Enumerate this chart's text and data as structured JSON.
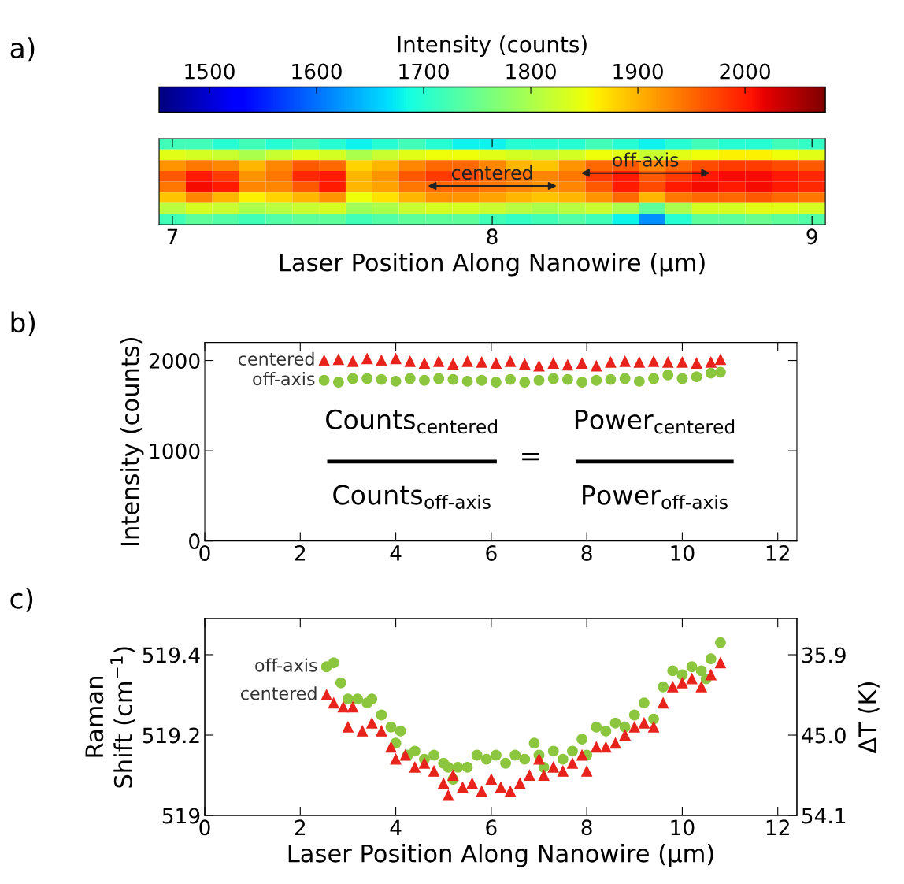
{
  "chart_data": [
    {
      "type": "heatmap",
      "clabel": "Intensity (counts)",
      "xlabel": "Laser Position Along Nanowire (µm)",
      "categories": [
        "7",
        null,
        null,
        null,
        null,
        null,
        null,
        null,
        null,
        null,
        null,
        null,
        "8",
        null,
        null,
        null,
        null,
        null,
        null,
        null,
        null,
        null,
        null,
        null,
        "9"
      ],
      "y_categories": [
        null,
        null,
        null,
        null,
        null,
        null,
        null,
        null
      ],
      "cells": [
        [
          1720,
          1720,
          1700,
          1720,
          1700,
          1720,
          1700,
          1680,
          1700,
          1720,
          1700,
          1680,
          1680,
          1700,
          1700,
          1700,
          1720,
          1700,
          1680,
          1700,
          1720,
          1700,
          1700,
          1720,
          1710
        ],
        [
          1840,
          1830,
          1820,
          1800,
          1820,
          1840,
          1830,
          1800,
          1820,
          1840,
          1850,
          1850,
          1840,
          1830,
          1820,
          1830,
          1850,
          1840,
          1820,
          1840,
          1850,
          1860,
          1860,
          1850,
          1840
        ],
        [
          1920,
          1940,
          1930,
          1900,
          1930,
          1960,
          1950,
          1880,
          1900,
          1930,
          1950,
          1950,
          1930,
          1900,
          1890,
          1920,
          1950,
          1960,
          1930,
          1950,
          1970,
          1980,
          1980,
          1970,
          1960
        ],
        [
          1960,
          2000,
          1980,
          1920,
          1940,
          1990,
          2000,
          1900,
          1920,
          1960,
          1980,
          1970,
          1950,
          1940,
          1930,
          1940,
          1980,
          2000,
          1960,
          1980,
          2000,
          2010,
          2010,
          2000,
          1990
        ],
        [
          1940,
          2010,
          2000,
          1930,
          1930,
          1960,
          2000,
          1900,
          1910,
          1940,
          1950,
          1950,
          1940,
          1930,
          1920,
          1930,
          1960,
          2000,
          1970,
          2000,
          2010,
          2000,
          2010,
          2000,
          1990
        ],
        [
          1890,
          1930,
          1900,
          1860,
          1880,
          1900,
          1920,
          1850,
          1870,
          1900,
          1920,
          1920,
          1910,
          1900,
          1890,
          1900,
          1920,
          1950,
          1900,
          1940,
          1950,
          1950,
          1960,
          1950,
          1940
        ],
        [
          1810,
          1830,
          1820,
          1800,
          1810,
          1820,
          1830,
          1790,
          1800,
          1820,
          1830,
          1830,
          1820,
          1810,
          1800,
          1810,
          1820,
          1800,
          1740,
          1800,
          1830,
          1830,
          1840,
          1840,
          1830
        ],
        [
          1720,
          1740,
          1730,
          1720,
          1730,
          1740,
          1740,
          1720,
          1730,
          1740,
          1740,
          1740,
          1720,
          1710,
          1720,
          1730,
          1720,
          1680,
          1620,
          1700,
          1740,
          1740,
          1750,
          1740,
          1730
        ]
      ],
      "clim": [
        1453,
        2075
      ],
      "cticks": [
        1500,
        1600,
        1700,
        1800,
        1900,
        2000
      ],
      "tick_labels": "x",
      "annotations": [
        "a)",
        "centered",
        "off-axis"
      ]
    },
    {
      "type": "scatter",
      "ylabel": "Intensity (counts)",
      "xlim": [
        0,
        12.4
      ],
      "xticks": [
        0,
        2,
        4,
        6,
        8,
        10,
        12
      ],
      "ylim": [
        0,
        2200
      ],
      "yticks": [
        0,
        1000,
        2000
      ],
      "legend": false,
      "grid": false,
      "series": [
        {
          "name": "centered",
          "color": "#e8231c",
          "marker": "triangle",
          "x": [
            2.5,
            2.8,
            3.1,
            3.4,
            3.7,
            4.0,
            4.3,
            4.6,
            4.9,
            5.2,
            5.5,
            5.8,
            6.1,
            6.4,
            6.7,
            7.0,
            7.3,
            7.6,
            7.9,
            8.2,
            8.5,
            8.8,
            9.1,
            9.4,
            9.7,
            10.0,
            10.3,
            10.6,
            10.8
          ],
          "values": [
            2000,
            2010,
            1990,
            2020,
            2000,
            2020,
            1990,
            1970,
            1990,
            1960,
            1990,
            1980,
            1970,
            1990,
            1960,
            1940,
            1970,
            1950,
            1970,
            1940,
            1980,
            1990,
            1980,
            1990,
            1980,
            1980,
            1970,
            1980,
            2010
          ]
        },
        {
          "name": "off-axis",
          "color": "#8cc63f",
          "marker": "circle",
          "x": [
            2.5,
            2.8,
            3.1,
            3.4,
            3.7,
            4.0,
            4.3,
            4.6,
            4.9,
            5.2,
            5.5,
            5.8,
            6.1,
            6.4,
            6.7,
            7.0,
            7.3,
            7.6,
            7.9,
            8.2,
            8.5,
            8.8,
            9.1,
            9.4,
            9.7,
            10.0,
            10.3,
            10.6,
            10.8
          ],
          "values": [
            1780,
            1760,
            1800,
            1800,
            1790,
            1770,
            1800,
            1780,
            1800,
            1790,
            1770,
            1780,
            1760,
            1790,
            1760,
            1780,
            1800,
            1790,
            1760,
            1780,
            1790,
            1800,
            1770,
            1800,
            1840,
            1800,
            1820,
            1860,
            1870
          ]
        }
      ],
      "annotations": [
        "b)",
        "Counts$_{centered}$",
        "Counts$_{off-axis}$",
        "=",
        "Power$_{centered}$",
        "Power$_{off-axis}$"
      ]
    },
    {
      "type": "scatter",
      "xlabel": "Laser Position Along Nanowire (µm)",
      "ylabel": "Raman\nShift (cm$^{−1}$)",
      "y2label": "ΔT (K)",
      "xlim": [
        0,
        12.4
      ],
      "xticks": [
        0,
        2,
        4,
        6,
        8,
        10,
        12
      ],
      "ylim": [
        519,
        519.49
      ],
      "yticks": [
        519,
        519.2,
        519.4
      ],
      "y2lim": [
        54.1,
        31.8
      ],
      "y2ticks": [
        35.9,
        {
          "value": 45,
          "label": "45.0"
        },
        54.1
      ],
      "legend": false,
      "grid": false,
      "series": [
        {
          "name": "off-axis",
          "color": "#8cc63f",
          "marker": "circle",
          "x": [
            2.55,
            2.7,
            2.85,
            3.0,
            3.2,
            3.4,
            3.5,
            3.7,
            3.9,
            4.0,
            4.1,
            4.25,
            4.4,
            4.6,
            4.8,
            5.0,
            5.1,
            5.2,
            5.3,
            5.5,
            5.7,
            5.9,
            6.1,
            6.3,
            6.5,
            6.7,
            6.9,
            7.0,
            7.1,
            7.3,
            7.5,
            7.7,
            7.9,
            8.0,
            8.2,
            8.4,
            8.6,
            8.8,
            9.0,
            9.2,
            9.4,
            9.6,
            9.8,
            10.0,
            10.2,
            10.4,
            10.5,
            10.6,
            10.8
          ],
          "values": [
            519.37,
            519.38,
            519.33,
            519.29,
            519.29,
            519.28,
            519.29,
            519.25,
            519.22,
            519.18,
            519.21,
            519.15,
            519.16,
            519.14,
            519.15,
            519.13,
            519.12,
            519.09,
            519.12,
            519.12,
            519.15,
            519.14,
            519.15,
            519.13,
            519.15,
            519.14,
            519.18,
            519.15,
            519.12,
            519.16,
            519.14,
            519.16,
            519.19,
            519.15,
            519.22,
            519.21,
            519.23,
            519.22,
            519.25,
            519.28,
            519.24,
            519.32,
            519.36,
            519.35,
            519.37,
            519.36,
            519.34,
            519.39,
            519.43
          ]
        },
        {
          "name": "centered",
          "color": "#e8231c",
          "marker": "triangle",
          "x": [
            2.55,
            2.7,
            2.9,
            3.0,
            3.1,
            3.3,
            3.5,
            3.7,
            3.9,
            4.0,
            4.2,
            4.4,
            4.6,
            4.8,
            5.0,
            5.1,
            5.2,
            5.4,
            5.6,
            5.8,
            6.0,
            6.2,
            6.4,
            6.6,
            6.8,
            7.0,
            7.1,
            7.3,
            7.5,
            7.7,
            7.9,
            8.0,
            8.2,
            8.4,
            8.6,
            8.8,
            9.0,
            9.2,
            9.4,
            9.6,
            9.8,
            10.0,
            10.2,
            10.4,
            10.6,
            10.8
          ],
          "values": [
            519.3,
            519.28,
            519.27,
            519.22,
            519.27,
            519.21,
            519.23,
            519.21,
            519.17,
            519.14,
            519.15,
            519.12,
            519.13,
            519.11,
            519.08,
            519.05,
            519.1,
            519.07,
            519.08,
            519.06,
            519.09,
            519.07,
            519.06,
            519.08,
            519.1,
            519.14,
            519.1,
            519.12,
            519.11,
            519.13,
            519.15,
            519.11,
            519.17,
            519.17,
            519.18,
            519.2,
            519.22,
            519.23,
            519.22,
            519.28,
            519.32,
            519.33,
            519.34,
            519.32,
            519.35,
            519.38
          ]
        }
      ],
      "annotations": [
        "c)"
      ]
    }
  ]
}
